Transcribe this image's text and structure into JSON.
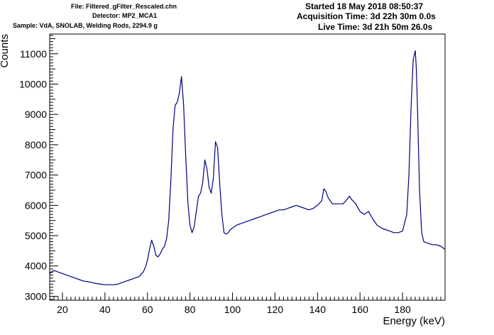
{
  "header": {
    "file": "File: Filtered_gFilter_Rescaled.chn",
    "detector": "Detector: MP2_MCA1",
    "sample": "Sample: VdA, SNOLAB, Welding Rods, 2294.9 g",
    "started": "Started 18 May 2018 08:50:37",
    "acquisition": "Acquisition Time: 3d 22h 30m 0.0s",
    "live": "Live Time: 3d 21h 50m 26.0s"
  },
  "chart_data": {
    "type": "line",
    "title": "",
    "xlabel": "Energy (keV)",
    "ylabel": "Counts",
    "xlim": [
      14,
      200
    ],
    "ylim": [
      2870,
      11650
    ],
    "xticks": [
      20,
      40,
      60,
      80,
      100,
      120,
      140,
      160,
      180
    ],
    "xtick_labels": [
      "20",
      "40",
      "60",
      "80",
      "100",
      "120",
      "140",
      "160",
      "180"
    ],
    "yticks": [
      3000,
      4000,
      5000,
      6000,
      7000,
      8000,
      9000,
      10000,
      11000
    ],
    "ytick_labels": [
      "3000",
      "4000",
      "5000",
      "6000",
      "7000",
      "8000",
      "9000",
      "10000",
      "11000"
    ],
    "grid": false,
    "line_color": "#000080",
    "series": [
      {
        "x": [
          14,
          16,
          18,
          20,
          22,
          24,
          26,
          28,
          30,
          32,
          34,
          36,
          38,
          40,
          42,
          44,
          46,
          48,
          50,
          52,
          54,
          56,
          58,
          59,
          60,
          61,
          62,
          63,
          64,
          65,
          66,
          67,
          68,
          69,
          70,
          71,
          72,
          73,
          74,
          75,
          76,
          77,
          78,
          79,
          80,
          81,
          82,
          83,
          84,
          85,
          86,
          87,
          88,
          89,
          90,
          91,
          92,
          93,
          94,
          95,
          96,
          97,
          98,
          99,
          100,
          102,
          104,
          106,
          108,
          110,
          112,
          114,
          116,
          118,
          120,
          122,
          124,
          126,
          128,
          130,
          132,
          134,
          136,
          138,
          140,
          142,
          143,
          144,
          145,
          146,
          147,
          148,
          150,
          152,
          154,
          155,
          156,
          158,
          160,
          162,
          164,
          166,
          168,
          170,
          172,
          174,
          176,
          178,
          180,
          182,
          183,
          184,
          185,
          186,
          186.5,
          187,
          188,
          189,
          190,
          192,
          194,
          196,
          198,
          200
        ],
        "y": [
          3750,
          3850,
          3800,
          3750,
          3700,
          3650,
          3600,
          3550,
          3500,
          3480,
          3450,
          3420,
          3400,
          3380,
          3380,
          3380,
          3400,
          3450,
          3500,
          3550,
          3600,
          3650,
          3800,
          3950,
          4200,
          4550,
          4850,
          4650,
          4350,
          4300,
          4400,
          4550,
          4650,
          4900,
          5500,
          6800,
          8500,
          9300,
          9400,
          9700,
          10250,
          9300,
          7600,
          6100,
          5350,
          5100,
          5300,
          5800,
          6300,
          6400,
          6750,
          7500,
          7200,
          6600,
          6400,
          6900,
          8100,
          7900,
          6700,
          5700,
          5100,
          5050,
          5100,
          5200,
          5250,
          5350,
          5400,
          5450,
          5500,
          5550,
          5600,
          5650,
          5700,
          5750,
          5800,
          5850,
          5850,
          5900,
          5950,
          6000,
          5950,
          5900,
          5850,
          5900,
          6000,
          6150,
          6550,
          6450,
          6250,
          6150,
          6050,
          6050,
          6050,
          6050,
          6200,
          6300,
          6200,
          6050,
          5800,
          5700,
          5800,
          5550,
          5350,
          5250,
          5200,
          5150,
          5100,
          5100,
          5150,
          5700,
          7000,
          9200,
          10800,
          11100,
          10500,
          9300,
          6500,
          5100,
          4800,
          4750,
          4700,
          4700,
          4650,
          4550
        ]
      }
    ]
  }
}
